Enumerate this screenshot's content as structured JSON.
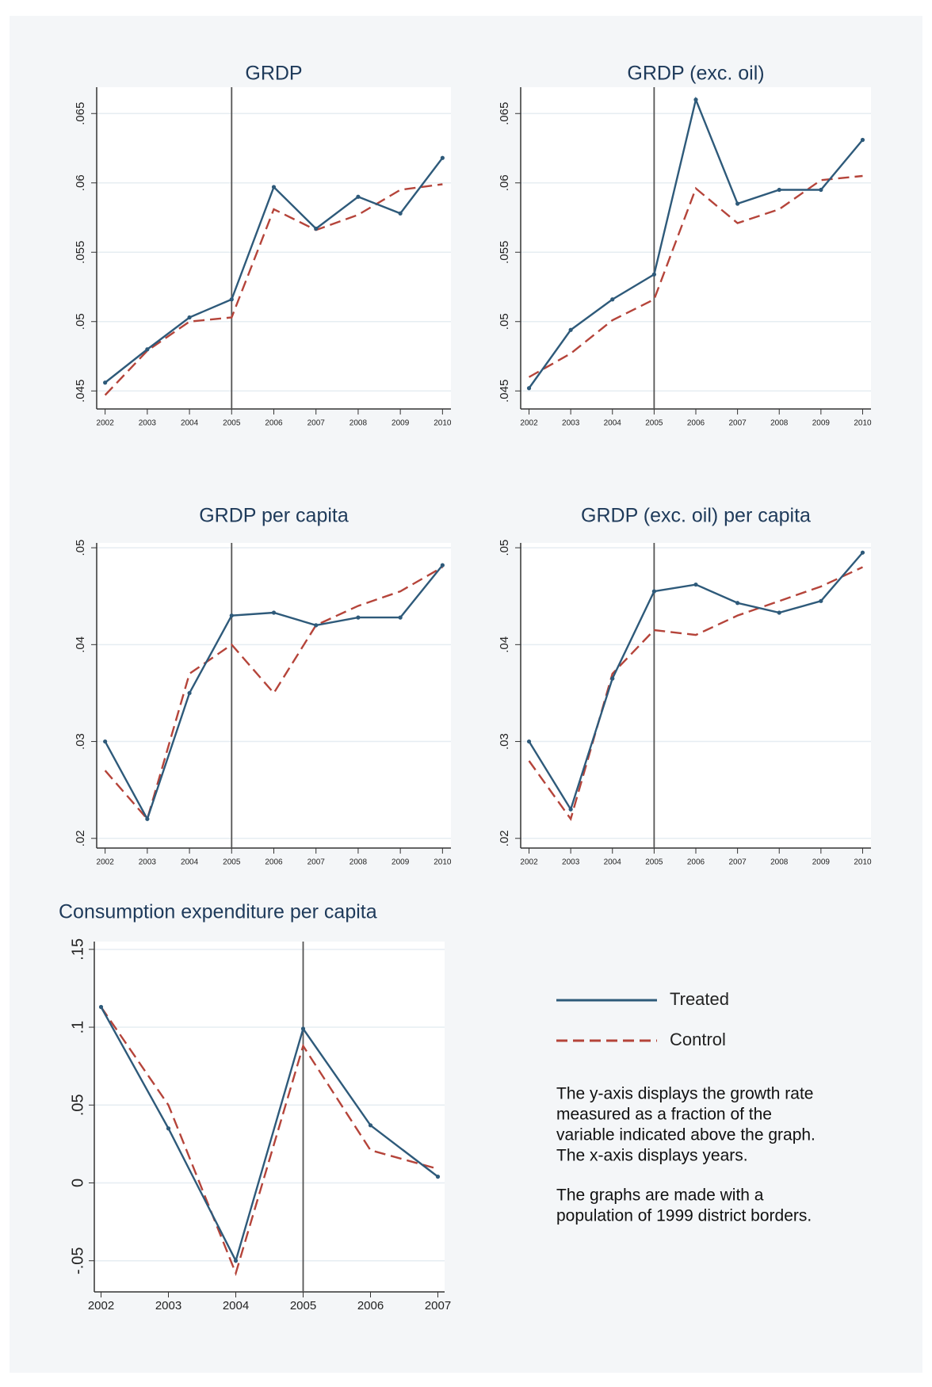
{
  "chart_data": [
    {
      "type": "line",
      "title": "GRDP",
      "x": [
        2002,
        2003,
        2004,
        2005,
        2006,
        2007,
        2008,
        2009,
        2010
      ],
      "series": [
        {
          "color": "#2e5a7a",
          "dash": false,
          "values": [
            0.0456,
            0.048,
            0.0503,
            0.0516,
            0.0597,
            0.0567,
            0.059,
            0.0578,
            0.0618
          ]
        },
        {
          "color": "#b5443a",
          "dash": true,
          "values": [
            0.0447,
            0.0479,
            0.05,
            0.0503,
            0.0581,
            0.0566,
            0.0577,
            0.0595,
            0.0599
          ]
        }
      ],
      "xline": 2005,
      "xlim": [
        2001.8,
        2010.2
      ],
      "xticks": [
        2002,
        2003,
        2004,
        2005,
        2006,
        2007,
        2008,
        2009,
        2010
      ],
      "ylim": [
        0.0437,
        0.0669
      ],
      "yticks": [
        {
          "value": 0.045,
          "label": ".045"
        },
        {
          "value": 0.05,
          "label": ".05"
        },
        {
          "value": 0.055,
          "label": ".055"
        },
        {
          "value": 0.06,
          "label": ".06"
        },
        {
          "value": 0.065,
          "label": ".065"
        }
      ],
      "grid": true
    },
    {
      "type": "line",
      "title": "GRDP (exc. oil)",
      "x": [
        2002,
        2003,
        2004,
        2005,
        2006,
        2007,
        2008,
        2009,
        2010
      ],
      "series": [
        {
          "color": "#2e5a7a",
          "dash": false,
          "values": [
            0.0452,
            0.0494,
            0.0516,
            0.0534,
            0.066,
            0.0585,
            0.0595,
            0.0595,
            0.0631
          ]
        },
        {
          "color": "#b5443a",
          "dash": true,
          "values": [
            0.046,
            0.0477,
            0.0501,
            0.0516,
            0.0596,
            0.0571,
            0.0581,
            0.0602,
            0.0605
          ]
        }
      ],
      "xline": 2005,
      "xlim": [
        2001.8,
        2010.2
      ],
      "xticks": [
        2002,
        2003,
        2004,
        2005,
        2006,
        2007,
        2008,
        2009,
        2010
      ],
      "ylim": [
        0.0437,
        0.0669
      ],
      "yticks": [
        {
          "value": 0.045,
          "label": ".045"
        },
        {
          "value": 0.05,
          "label": ".05"
        },
        {
          "value": 0.055,
          "label": ".055"
        },
        {
          "value": 0.06,
          "label": ".06"
        },
        {
          "value": 0.065,
          "label": ".065"
        }
      ],
      "grid": true
    },
    {
      "type": "line",
      "title": "GRDP per capita",
      "x": [
        2002,
        2003,
        2004,
        2005,
        2006,
        2007,
        2008,
        2009,
        2010
      ],
      "series": [
        {
          "color": "#2e5a7a",
          "dash": false,
          "values": [
            0.03,
            0.022,
            0.035,
            0.043,
            0.0433,
            0.042,
            0.0428,
            0.0428,
            0.0482
          ]
        },
        {
          "color": "#b5443a",
          "dash": true,
          "values": [
            0.027,
            0.022,
            0.037,
            0.04,
            0.035,
            0.042,
            0.044,
            0.0455,
            0.048
          ]
        }
      ],
      "xline": 2005,
      "xlim": [
        2001.8,
        2010.2
      ],
      "xticks": [
        2002,
        2003,
        2004,
        2005,
        2006,
        2007,
        2008,
        2009,
        2010
      ],
      "ylim": [
        0.019,
        0.0505
      ],
      "yticks": [
        {
          "value": 0.02,
          "label": ".02"
        },
        {
          "value": 0.03,
          "label": ".03"
        },
        {
          "value": 0.04,
          "label": ".04"
        },
        {
          "value": 0.05,
          "label": ".05"
        }
      ],
      "grid": true
    },
    {
      "type": "line",
      "title": "GRDP (exc. oil) per capita",
      "x": [
        2002,
        2003,
        2004,
        2005,
        2006,
        2007,
        2008,
        2009,
        2010
      ],
      "series": [
        {
          "color": "#2e5a7a",
          "dash": false,
          "values": [
            0.03,
            0.023,
            0.0365,
            0.0455,
            0.0462,
            0.0443,
            0.0433,
            0.0445,
            0.0495
          ]
        },
        {
          "color": "#b5443a",
          "dash": true,
          "values": [
            0.028,
            0.022,
            0.037,
            0.0415,
            0.041,
            0.043,
            0.0445,
            0.046,
            0.048
          ]
        }
      ],
      "xline": 2005,
      "xlim": [
        2001.8,
        2010.2
      ],
      "xticks": [
        2002,
        2003,
        2004,
        2005,
        2006,
        2007,
        2008,
        2009,
        2010
      ],
      "ylim": [
        0.019,
        0.0505
      ],
      "yticks": [
        {
          "value": 0.02,
          "label": ".02"
        },
        {
          "value": 0.03,
          "label": ".03"
        },
        {
          "value": 0.04,
          "label": ".04"
        },
        {
          "value": 0.05,
          "label": ".05"
        }
      ],
      "grid": true
    },
    {
      "type": "line",
      "title": "Consumption expenditure per capita",
      "x": [
        2002,
        2003,
        2004,
        2005,
        2006,
        2007
      ],
      "series": [
        {
          "name": "Treated",
          "color": "#2e5a7a",
          "dash": false,
          "values": [
            0.113,
            0.035,
            -0.05,
            0.099,
            0.037,
            0.004
          ]
        },
        {
          "name": "Control",
          "color": "#b5443a",
          "dash": true,
          "values": [
            0.113,
            0.05,
            -0.058,
            0.088,
            0.021,
            0.009
          ]
        }
      ],
      "xline": 2005,
      "xlim": [
        2001.9,
        2007.1
      ],
      "xticks": [
        2002,
        2003,
        2004,
        2005,
        2006,
        2007
      ],
      "ylim": [
        -0.07,
        0.155
      ],
      "yticks": [
        {
          "value": -0.05,
          "label": "-.05"
        },
        0,
        {
          "value": 0.05,
          "label": ".05"
        },
        {
          "value": 0.1,
          "label": ".1"
        },
        {
          "value": 0.15,
          "label": ".15"
        }
      ],
      "grid": true
    }
  ],
  "notes": [
    [
      "The y-axis displays the growth rate",
      "measured as a fraction of the",
      "variable indicated above the graph.",
      "The x-axis displays years."
    ],
    [
      "The graphs are made with a",
      "population of 1999 district borders."
    ]
  ]
}
